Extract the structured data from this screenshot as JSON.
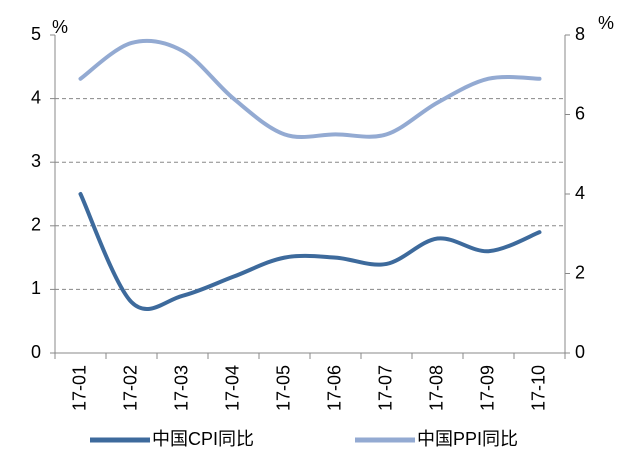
{
  "chart_data": {
    "type": "line",
    "categories": [
      "17-01",
      "17-02",
      "17-03",
      "17-04",
      "17-05",
      "17-06",
      "17-07",
      "17-08",
      "17-09",
      "17-10"
    ],
    "series": [
      {
        "name": "中国CPI同比",
        "color": "#3d6a9c",
        "values": [
          2.5,
          0.8,
          0.9,
          1.2,
          1.5,
          1.5,
          1.4,
          1.8,
          1.6,
          1.9
        ]
      },
      {
        "name": "中国PPI同比",
        "color": "#93aad2",
        "axis": "y2",
        "values": [
          6.9,
          7.8,
          7.6,
          6.4,
          5.5,
          5.5,
          5.5,
          6.3,
          6.9,
          6.9
        ]
      }
    ],
    "y_unit": "%",
    "y2_unit": "%",
    "ylim": [
      0,
      5
    ],
    "yticks": [
      0,
      1,
      2,
      3,
      4,
      5
    ],
    "y2lim": [
      0,
      8
    ],
    "y2ticks": [
      0,
      2,
      4,
      6,
      8
    ],
    "grid": true,
    "legend": "bottom"
  }
}
